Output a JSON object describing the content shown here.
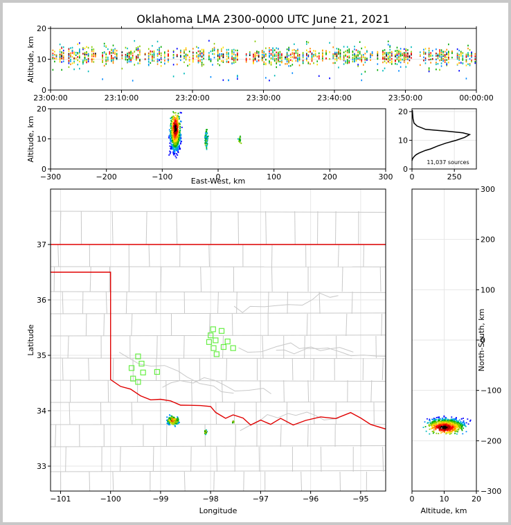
{
  "title": "Oklahoma LMA 2300-0000 UTC June 21, 2021",
  "colors": {
    "state_border": "#e00000",
    "county_lines": "#c8c8c8",
    "stations": "#66ee44",
    "frame": "#000000"
  },
  "chart_data": [
    {
      "name": "altitude-vs-time",
      "type": "heatmap",
      "ylabel": "Altitude, km",
      "ylim": [
        0,
        20
      ],
      "yticks": [
        "0",
        "10",
        "20"
      ],
      "xticks": [
        "23:00:00",
        "23:10:00",
        "23:20:00",
        "23:30:00",
        "23:40:00",
        "23:50:00",
        "00:00:00"
      ],
      "xlim": [
        "23:00:00",
        "00:00:00"
      ],
      "dominant_altitude_km": [
        8,
        14
      ],
      "grid": true
    },
    {
      "name": "altitude-vs-east-west",
      "type": "heatmap",
      "xlabel": "East-West, km",
      "ylabel": "Altitude, km",
      "xlim": [
        -300,
        300
      ],
      "ylim": [
        0,
        20
      ],
      "xticks": [
        "−300",
        "−200",
        "−100",
        "0",
        "100",
        "200",
        "300"
      ],
      "yticks": [
        "0",
        "10",
        "20"
      ],
      "clusters_km": [
        {
          "x": [
            -88,
            -65
          ],
          "z": [
            3,
            20
          ]
        },
        {
          "x": [
            -25,
            -17
          ],
          "z": [
            6,
            14
          ]
        },
        {
          "x": [
            36,
            42
          ],
          "z": [
            8,
            12
          ]
        }
      ],
      "grid": true
    },
    {
      "name": "altitude-histogram",
      "type": "line",
      "annotation": "11,037 sources",
      "xlim": [
        0,
        380
      ],
      "ylim": [
        0,
        21
      ],
      "xticks": [
        "0",
        "250"
      ],
      "yticks": [
        "0",
        "10",
        "20"
      ],
      "x": [
        0,
        3,
        8,
        15,
        25,
        40,
        60,
        80,
        110,
        150,
        200,
        260,
        310,
        340,
        300,
        200,
        80,
        30,
        12,
        6,
        4,
        2
      ],
      "y": [
        2.9,
        3.5,
        4.0,
        4.5,
        5.0,
        5.5,
        6.0,
        6.5,
        7.0,
        8.0,
        9.0,
        10.0,
        11.0,
        12.0,
        12.6,
        13.2,
        13.8,
        15.0,
        16.0,
        17.5,
        19.0,
        20.5
      ],
      "grid": true
    },
    {
      "name": "plan-view-map",
      "type": "scatter",
      "xlabel": "Longitude",
      "ylabel": "Latitude",
      "xlim": [
        -101.2,
        -94.5
      ],
      "ylim": [
        32.55,
        38.0
      ],
      "xticks": [
        "−101",
        "−100",
        "−99",
        "−98",
        "−97",
        "−96",
        "−95"
      ],
      "yticks": [
        "33",
        "34",
        "35",
        "36",
        "37"
      ],
      "stations": [
        {
          "lon": -97.95,
          "lat": 35.47
        },
        {
          "lon": -97.78,
          "lat": 35.44
        },
        {
          "lon": -98.0,
          "lat": 35.36
        },
        {
          "lon": -97.9,
          "lat": 35.27
        },
        {
          "lon": -98.03,
          "lat": 35.24
        },
        {
          "lon": -97.66,
          "lat": 35.25
        },
        {
          "lon": -97.74,
          "lat": 35.15
        },
        {
          "lon": -97.55,
          "lat": 35.13
        },
        {
          "lon": -97.94,
          "lat": 35.13
        },
        {
          "lon": -97.88,
          "lat": 35.02
        },
        {
          "lon": -99.45,
          "lat": 34.98
        },
        {
          "lon": -99.38,
          "lat": 34.85
        },
        {
          "lon": -99.58,
          "lat": 34.77
        },
        {
          "lon": -99.35,
          "lat": 34.69
        },
        {
          "lon": -99.07,
          "lat": 34.7
        },
        {
          "lon": -99.55,
          "lat": 34.58
        },
        {
          "lon": -99.45,
          "lat": 34.52
        }
      ],
      "grid": true
    },
    {
      "name": "north-south-vs-altitude",
      "type": "heatmap",
      "xlabel": "Altitude, km",
      "ylabel": "North-South, km",
      "xlim": [
        0,
        20
      ],
      "ylim": [
        -300,
        300
      ],
      "xticks": [
        "0",
        "10",
        "20"
      ],
      "yticks": [
        "−300",
        "−200",
        "−100",
        "0",
        "100",
        "200",
        "300"
      ],
      "cluster": {
        "z": [
          3,
          19
        ],
        "y": [
          -190,
          -148
        ]
      },
      "grid": true
    }
  ]
}
